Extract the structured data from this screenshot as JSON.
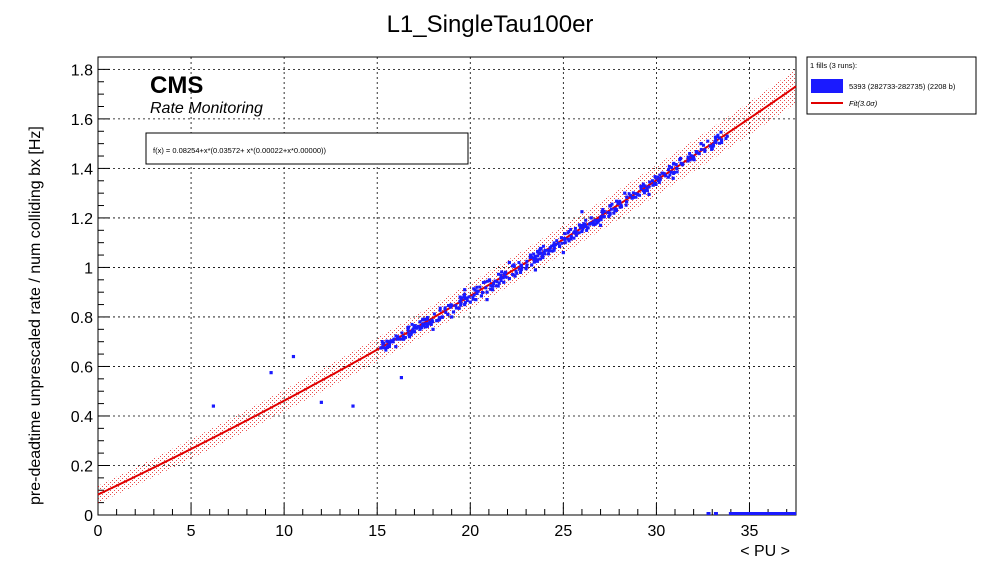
{
  "chart_data": {
    "type": "scatter",
    "title": "L1_SingleTau100er",
    "xlabel": "< PU >",
    "ylabel": "pre-deadtime unprescaled rate / num colliding bx [Hz]",
    "xlim": [
      0,
      37.5
    ],
    "ylim": [
      0,
      1.85
    ],
    "x_ticks": [
      "0",
      "5",
      "10",
      "15",
      "20",
      "25",
      "30",
      "35"
    ],
    "y_ticks": [
      "0",
      "0.2",
      "0.4",
      "0.6",
      "0.8",
      "1",
      "1.2",
      "1.4",
      "1.6",
      "1.8"
    ],
    "grid": true,
    "legend_placement": "top-right",
    "cms_label": "CMS",
    "cms_sublabel": "Rate Monitoring",
    "fit_box_text": "f(x) = 0.08254+x*(0.03572+ x*(0.00022+x*0.00000))",
    "fit": {
      "c0": 0.08254,
      "c1": 0.03572,
      "c2": 0.00022,
      "c3": 0.0,
      "band_sigma": 3.0,
      "band_halfwidth": 0.035
    },
    "colors": {
      "data": "#1a1aff",
      "fit": "#e00000",
      "band": "#e00000",
      "grid": "#000000"
    },
    "legend": {
      "header": "1 fills (3 runs):",
      "entries": [
        {
          "label": "5393 (282733-282735) (2208 b)",
          "kind": "box",
          "color": "#1a1aff"
        },
        {
          "label": "Fit(3.0σ)",
          "kind": "line",
          "color": "#e00000"
        }
      ]
    },
    "series": [
      {
        "name": "5393 (282733-282735) (2208 b)",
        "points": [
          {
            "x": 6.2,
            "y": 0.44
          },
          {
            "x": 9.3,
            "y": 0.575
          },
          {
            "x": 10.5,
            "y": 0.64
          },
          {
            "x": 12.0,
            "y": 0.455
          },
          {
            "x": 13.7,
            "y": 0.44
          },
          {
            "x": 16.3,
            "y": 0.555
          },
          {
            "x": 15.3,
            "y": 0.69
          },
          {
            "x": 15.6,
            "y": 0.7
          },
          {
            "x": 15.9,
            "y": 0.71
          },
          {
            "x": 16.1,
            "y": 0.72
          },
          {
            "x": 16.4,
            "y": 0.71
          },
          {
            "x": 16.7,
            "y": 0.73
          },
          {
            "x": 17.0,
            "y": 0.74
          },
          {
            "x": 17.3,
            "y": 0.75
          },
          {
            "x": 17.6,
            "y": 0.76
          },
          {
            "x": 17.9,
            "y": 0.77
          },
          {
            "x": 18.2,
            "y": 0.785
          },
          {
            "x": 18.5,
            "y": 0.8
          },
          {
            "x": 18.8,
            "y": 0.81
          },
          {
            "x": 19.1,
            "y": 0.82
          },
          {
            "x": 19.4,
            "y": 0.835
          },
          {
            "x": 19.7,
            "y": 0.85
          },
          {
            "x": 20.0,
            "y": 0.86
          },
          {
            "x": 20.3,
            "y": 0.87
          },
          {
            "x": 20.6,
            "y": 0.885
          },
          {
            "x": 20.9,
            "y": 0.9
          },
          {
            "x": 21.2,
            "y": 0.91
          },
          {
            "x": 21.5,
            "y": 0.925
          },
          {
            "x": 21.8,
            "y": 0.94
          },
          {
            "x": 22.1,
            "y": 0.955
          },
          {
            "x": 22.4,
            "y": 0.965
          },
          {
            "x": 22.7,
            "y": 0.98
          },
          {
            "x": 23.0,
            "y": 0.995
          },
          {
            "x": 23.3,
            "y": 1.01
          },
          {
            "x": 23.6,
            "y": 1.025
          },
          {
            "x": 23.9,
            "y": 1.04
          },
          {
            "x": 24.2,
            "y": 1.055
          },
          {
            "x": 24.5,
            "y": 1.07
          },
          {
            "x": 24.8,
            "y": 1.085
          },
          {
            "x": 25.1,
            "y": 1.1
          },
          {
            "x": 25.4,
            "y": 1.115
          },
          {
            "x": 25.7,
            "y": 1.13
          },
          {
            "x": 26.0,
            "y": 1.145
          },
          {
            "x": 26.3,
            "y": 1.16
          },
          {
            "x": 26.6,
            "y": 1.175
          },
          {
            "x": 26.9,
            "y": 1.19
          },
          {
            "x": 27.2,
            "y": 1.205
          },
          {
            "x": 27.5,
            "y": 1.22
          },
          {
            "x": 27.8,
            "y": 1.235
          },
          {
            "x": 28.1,
            "y": 1.25
          },
          {
            "x": 28.4,
            "y": 1.265
          },
          {
            "x": 28.7,
            "y": 1.28
          },
          {
            "x": 29.0,
            "y": 1.295
          },
          {
            "x": 29.3,
            "y": 1.31
          },
          {
            "x": 29.6,
            "y": 1.325
          },
          {
            "x": 29.9,
            "y": 1.34
          },
          {
            "x": 30.2,
            "y": 1.355
          },
          {
            "x": 30.5,
            "y": 1.37
          },
          {
            "x": 30.8,
            "y": 1.385
          },
          {
            "x": 31.1,
            "y": 1.4
          },
          {
            "x": 31.4,
            "y": 1.415
          },
          {
            "x": 31.7,
            "y": 1.43
          },
          {
            "x": 32.0,
            "y": 1.445
          },
          {
            "x": 32.3,
            "y": 1.46
          },
          {
            "x": 32.6,
            "y": 1.475
          },
          {
            "x": 32.9,
            "y": 1.49
          },
          {
            "x": 33.2,
            "y": 1.505
          },
          {
            "x": 33.5,
            "y": 1.515
          },
          {
            "x": 33.8,
            "y": 1.53
          },
          {
            "x": 26.0,
            "y": 1.225
          },
          {
            "x": 19.7,
            "y": 0.91
          },
          {
            "x": 22.1,
            "y": 1.02
          },
          {
            "x": 24.3,
            "y": 1.08
          },
          {
            "x": 25.0,
            "y": 1.06
          },
          {
            "x": 17.3,
            "y": 0.78
          },
          {
            "x": 18.0,
            "y": 0.75
          },
          {
            "x": 20.9,
            "y": 0.87
          },
          {
            "x": 23.5,
            "y": 0.99
          },
          {
            "x": 27.0,
            "y": 1.17
          },
          {
            "x": 28.3,
            "y": 1.3
          },
          {
            "x": 29.6,
            "y": 1.295
          },
          {
            "x": 30.9,
            "y": 1.36
          },
          {
            "x": 32.4,
            "y": 1.5
          },
          {
            "x": 16.0,
            "y": 0.68
          },
          {
            "x": 21.9,
            "y": 0.98
          },
          {
            "x": 24.9,
            "y": 1.12
          },
          {
            "x": 31.3,
            "y": 1.44
          },
          {
            "x": 33.0,
            "y": 1.48
          },
          {
            "x": 19.0,
            "y": 0.8
          },
          {
            "x": 26.5,
            "y": 1.2
          }
        ],
        "baseline_points": [
          {
            "x": 32.8,
            "y": 0.0
          },
          {
            "x": 33.2,
            "y": 0.0
          },
          {
            "x": 34.0,
            "y": 0.0
          },
          {
            "x": 34.5,
            "y": 0.0
          },
          {
            "x": 35.0,
            "y": 0.0
          },
          {
            "x": 35.5,
            "y": 0.0
          },
          {
            "x": 36.0,
            "y": 0.0
          },
          {
            "x": 36.5,
            "y": 0.0
          },
          {
            "x": 37.0,
            "y": 0.0
          },
          {
            "x": 37.4,
            "y": 0.0
          }
        ]
      }
    ]
  }
}
